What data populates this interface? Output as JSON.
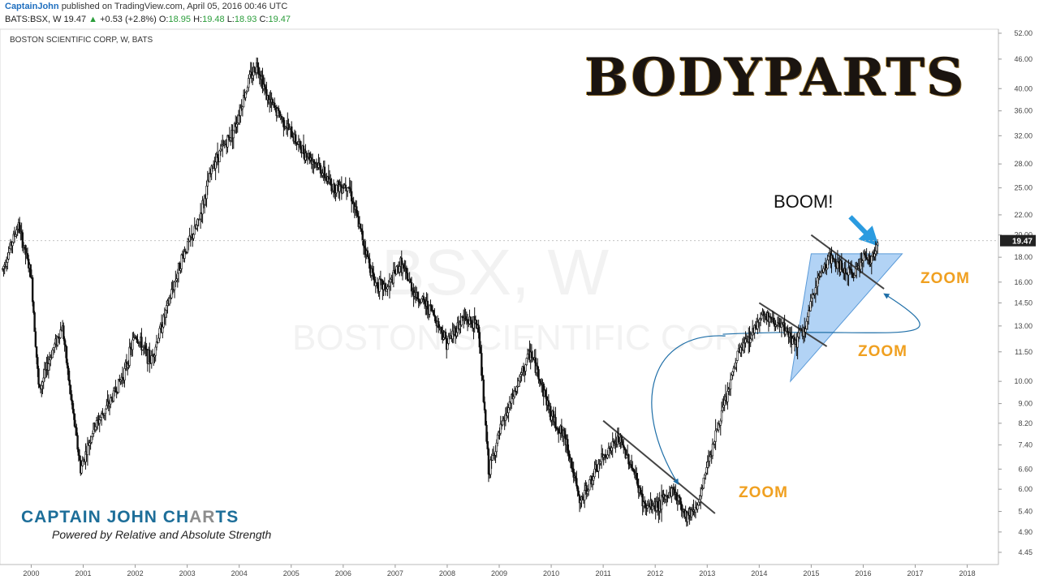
{
  "header": {
    "author": "CaptainJohn",
    "published_text": "published on TradingView.com, April 05, 2016 00:46 UTC",
    "symbol": "BATS:BSX, W",
    "last": "19.47",
    "change_arrow": "▲",
    "change": "+0.53 (+2.8%)",
    "open_label": "O:",
    "open": "18.95",
    "high_label": "H:",
    "high": "19.48",
    "low_label": "L:",
    "low": "18.93",
    "close_label": "C:",
    "close": "19.47"
  },
  "chart_title": "BOSTON SCIENTIFIC CORP, W, BATS",
  "watermark": {
    "symbol": "BSX, W",
    "name": "BOSTON SCIENTIFIC CORP"
  },
  "logo": {
    "text": "BODYPARTS"
  },
  "annotations": {
    "boom": "BOOM!",
    "zoom1": "ZOOM",
    "zoom2": "ZOOM",
    "zoom3": "ZOOM"
  },
  "brand": {
    "title_part1": "CAPTAIN JOHN CH",
    "title_part2": "AR",
    "title_part3": "TS",
    "subtitle": "Powered by Relative and  Absolute Strength"
  },
  "colors": {
    "candle": "#111111",
    "trendline": "#444444",
    "triangle_fill": "#7fb6ee",
    "arrow": "#1f6fa8",
    "price_tag_bg": "#222222"
  },
  "chart_data": {
    "type": "candlestick",
    "interval": "W",
    "y_scale": "log",
    "x_ticks": [
      "2000",
      "2001",
      "2002",
      "2003",
      "2004",
      "2005",
      "2006",
      "2007",
      "2008",
      "2009",
      "2010",
      "2011",
      "2012",
      "2013",
      "2014",
      "2015",
      "2016",
      "2017",
      "2018"
    ],
    "y_ticks": [
      "4.45",
      "4.90",
      "5.40",
      "6.00",
      "6.60",
      "7.40",
      "8.20",
      "9.00",
      "10.00",
      "11.50",
      "13.00",
      "14.50",
      "16.00",
      "18.00",
      "20.00",
      "22.00",
      "25.00",
      "28.00",
      "32.00",
      "36.00",
      "40.00",
      "46.00",
      "52.00"
    ],
    "last_price_label": "19.47",
    "ylim": [
      4.2,
      53
    ],
    "xlim": [
      1999.4,
      2018.6
    ],
    "anchors": [
      {
        "t": 1999.45,
        "p": 17.0
      },
      {
        "t": 1999.75,
        "p": 21.0
      },
      {
        "t": 2000.0,
        "p": 16.5
      },
      {
        "t": 2000.15,
        "p": 9.5
      },
      {
        "t": 2000.4,
        "p": 11.5
      },
      {
        "t": 2000.6,
        "p": 13.0
      },
      {
        "t": 2000.75,
        "p": 9.5
      },
      {
        "t": 2000.95,
        "p": 6.6
      },
      {
        "t": 2001.2,
        "p": 8.0
      },
      {
        "t": 2001.5,
        "p": 9.0
      },
      {
        "t": 2001.8,
        "p": 10.5
      },
      {
        "t": 2002.0,
        "p": 12.5
      },
      {
        "t": 2002.3,
        "p": 11.0
      },
      {
        "t": 2002.6,
        "p": 14.0
      },
      {
        "t": 2002.9,
        "p": 18.0
      },
      {
        "t": 2003.2,
        "p": 21.0
      },
      {
        "t": 2003.5,
        "p": 28.0
      },
      {
        "t": 2003.9,
        "p": 33.0
      },
      {
        "t": 2004.2,
        "p": 42.0
      },
      {
        "t": 2004.35,
        "p": 45.0
      },
      {
        "t": 2004.55,
        "p": 38.0
      },
      {
        "t": 2004.8,
        "p": 35.0
      },
      {
        "t": 2005.2,
        "p": 30.0
      },
      {
        "t": 2005.5,
        "p": 28.0
      },
      {
        "t": 2005.8,
        "p": 25.0
      },
      {
        "t": 2006.1,
        "p": 25.5
      },
      {
        "t": 2006.3,
        "p": 21.0
      },
      {
        "t": 2006.6,
        "p": 16.0
      },
      {
        "t": 2006.85,
        "p": 15.5
      },
      {
        "t": 2007.1,
        "p": 17.5
      },
      {
        "t": 2007.4,
        "p": 15.0
      },
      {
        "t": 2007.7,
        "p": 14.0
      },
      {
        "t": 2008.0,
        "p": 12.0
      },
      {
        "t": 2008.3,
        "p": 13.5
      },
      {
        "t": 2008.6,
        "p": 13.0
      },
      {
        "t": 2008.8,
        "p": 6.5
      },
      {
        "t": 2009.0,
        "p": 7.8
      },
      {
        "t": 2009.3,
        "p": 9.5
      },
      {
        "t": 2009.6,
        "p": 11.5
      },
      {
        "t": 2009.8,
        "p": 10.0
      },
      {
        "t": 2010.0,
        "p": 8.5
      },
      {
        "t": 2010.3,
        "p": 7.5
      },
      {
        "t": 2010.55,
        "p": 5.6
      },
      {
        "t": 2010.75,
        "p": 6.2
      },
      {
        "t": 2011.0,
        "p": 7.0
      },
      {
        "t": 2011.3,
        "p": 7.6
      },
      {
        "t": 2011.55,
        "p": 6.7
      },
      {
        "t": 2011.8,
        "p": 5.5
      },
      {
        "t": 2012.1,
        "p": 5.6
      },
      {
        "t": 2012.35,
        "p": 6.0
      },
      {
        "t": 2012.6,
        "p": 5.3
      },
      {
        "t": 2012.85,
        "p": 5.6
      },
      {
        "t": 2013.0,
        "p": 6.8
      },
      {
        "t": 2013.2,
        "p": 8.0
      },
      {
        "t": 2013.4,
        "p": 9.5
      },
      {
        "t": 2013.6,
        "p": 11.5
      },
      {
        "t": 2013.85,
        "p": 12.5
      },
      {
        "t": 2014.05,
        "p": 13.8
      },
      {
        "t": 2014.3,
        "p": 13.2
      },
      {
        "t": 2014.5,
        "p": 12.7
      },
      {
        "t": 2014.7,
        "p": 12.0
      },
      {
        "t": 2014.9,
        "p": 13.0
      },
      {
        "t": 2015.1,
        "p": 16.0
      },
      {
        "t": 2015.35,
        "p": 18.0
      },
      {
        "t": 2015.6,
        "p": 17.0
      },
      {
        "t": 2015.8,
        "p": 16.5
      },
      {
        "t": 2016.0,
        "p": 18.2
      },
      {
        "t": 2016.15,
        "p": 17.5
      },
      {
        "t": 2016.27,
        "p": 19.47
      }
    ]
  }
}
